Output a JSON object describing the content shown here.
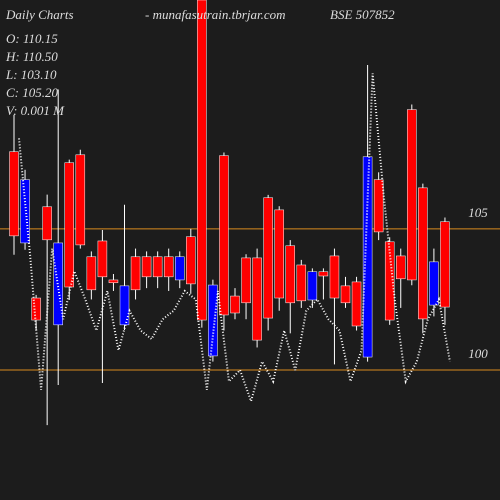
{
  "header": {
    "label": "Daily Charts",
    "site": "- munafasutrain.tbrjar.com",
    "symbol": "BSE 507852",
    "open": "O: 110.15",
    "high": "H: 110.50",
    "low": "L: 103.10",
    "close": "C: 105.20",
    "volume": "V: 0.001 M"
  },
  "chart_data": {
    "type": "candlestick",
    "open": [
      107.73,
      104.5,
      102.55,
      105.78,
      101.6,
      107.34,
      107.62,
      104.01,
      104.57,
      103.19,
      101.6,
      104.01,
      104.01,
      104.01,
      104.01,
      103.19,
      104.72,
      113.1,
      100.5,
      107.59,
      102.62,
      103.97,
      103.97,
      106.1,
      105.67,
      104.4,
      103.72,
      102.48,
      103.48,
      104.04,
      102.98,
      103.12,
      100.46,
      106.74,
      104.54,
      104.04,
      109.22,
      106.45,
      102.3,
      105.25
    ],
    "high": [
      109.04,
      107.09,
      102.66,
      106.21,
      109.93,
      107.45,
      107.8,
      104.2,
      104.96,
      103.4,
      105.85,
      104.3,
      104.2,
      104.2,
      104.3,
      104.2,
      105.0,
      113.1,
      103.2,
      107.7,
      102.9,
      104.1,
      104.3,
      106.2,
      105.8,
      104.6,
      103.9,
      103.6,
      103.6,
      104.3,
      103.3,
      103.3,
      110.8,
      107.0,
      104.7,
      104.3,
      109.4,
      106.6,
      104.3,
      105.4
    ],
    "low": [
      104.08,
      104.26,
      101.42,
      98.05,
      99.47,
      102.48,
      104.3,
      102.5,
      99.54,
      102.8,
      101.42,
      102.5,
      102.9,
      102.9,
      102.8,
      102.9,
      102.7,
      101.5,
      100.3,
      101.4,
      101.8,
      101.8,
      100.8,
      101.4,
      102.1,
      101.3,
      102.2,
      102.2,
      102.5,
      100.2,
      102.2,
      101.4,
      100.3,
      104.6,
      101.6,
      102.2,
      103.0,
      101.3,
      101.9,
      101.6
    ],
    "close": [
      104.75,
      106.74,
      101.77,
      104.61,
      104.5,
      102.94,
      104.43,
      102.84,
      103.3,
      103.09,
      102.98,
      102.84,
      103.3,
      103.3,
      103.3,
      104.01,
      103.05,
      101.77,
      103.01,
      101.95,
      102.02,
      102.38,
      101.06,
      101.84,
      102.55,
      102.38,
      102.45,
      103.48,
      103.33,
      102.55,
      102.38,
      101.56,
      107.55,
      104.89,
      101.77,
      103.23,
      103.19,
      101.81,
      103.83,
      102.23
    ],
    "overlay": [
      108.2,
      104.1,
      99.3,
      104.3,
      101.8,
      103.5,
      102.5,
      101.4,
      102.8,
      100.7,
      102.1,
      101.4,
      101.1,
      101.8,
      102.1,
      102.8,
      102.5,
      99.3,
      102.8,
      99.6,
      100.0,
      98.9,
      100.3,
      99.6,
      101.4,
      100.0,
      102.1,
      102.5,
      101.8,
      101.4,
      99.6,
      100.7,
      110.5,
      106.2,
      102.5,
      99.6,
      100.3,
      101.8,
      102.5,
      100.3
    ],
    "up_color": "#0000ff",
    "down_color": "#ff0000",
    "wick_color": "#ffffff",
    "overlay_color": "#ffffff",
    "grid_color": "#d98a1e",
    "ylim": [
      95.4,
      113.1
    ],
    "yticks": [
      100,
      105
    ],
    "grid": true
  }
}
